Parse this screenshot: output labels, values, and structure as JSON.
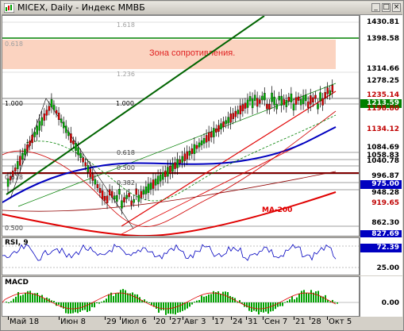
{
  "window": {
    "title": "MICEX, Daily - Индекс ММВБ",
    "minimize": "_",
    "restore": "□",
    "close": "×"
  },
  "main_panel": {
    "zone_text": "Зона сопротивления.",
    "ma_label": "MA-200",
    "fib_levels": [
      "1.618",
      "1.236",
      "1.000",
      "0.618",
      "0.500",
      "0.382",
      "0.618",
      "0.618",
      "1.000",
      "0.500"
    ],
    "price_scale": [
      "1430.81",
      "1398.58",
      "1314.66",
      "1278.25",
      "1235.14",
      "1213.59",
      "1198.80",
      "1134.12",
      "1084.69",
      "1058.83",
      "1040.78",
      "996.87",
      "975.00",
      "948.28",
      "919.65",
      "862.30",
      "827.69"
    ],
    "colors": {
      "resistance_zone": "#fbd3c0",
      "green_line": "#006400",
      "red": "#e00000",
      "blue": "#0000c0",
      "candle": "#00a000"
    }
  },
  "rsi_panel": {
    "title": "RSI, 9",
    "scale": [
      "72.39",
      "25.00"
    ]
  },
  "macd_panel": {
    "title": "MACD",
    "scale": [
      "0.00"
    ]
  },
  "x_axis": {
    "labels": [
      "Май 18",
      "Июн 8",
      "29",
      "Июл 6",
      "20",
      "27",
      "Авг 3",
      "17",
      "24",
      "31",
      "Сен 7",
      "21",
      "28",
      "Окт 5"
    ]
  }
}
